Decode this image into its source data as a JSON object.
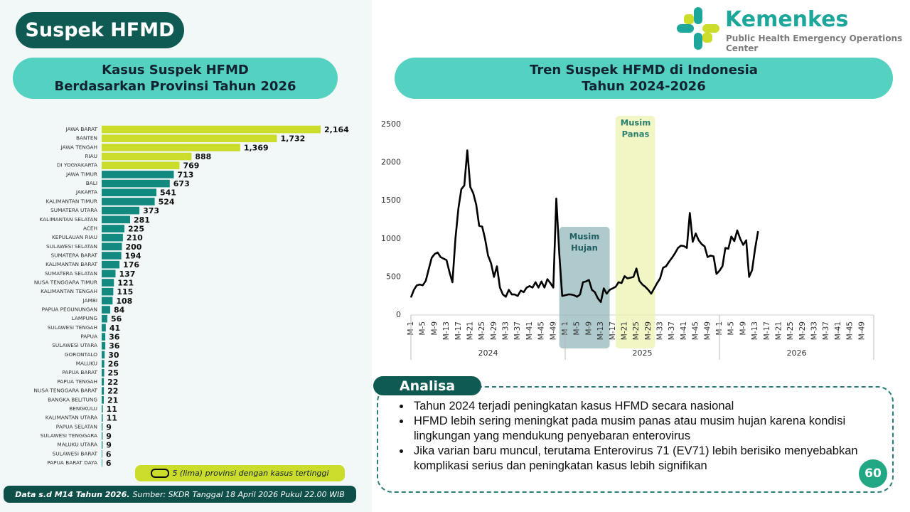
{
  "title": "Suspek HFMD",
  "logo": {
    "name": "Kemenkes",
    "subtitle": "Public Health Emergency Operations Center"
  },
  "chart_data": [
    {
      "type": "bar",
      "orientation": "horizontal",
      "title": [
        "Kasus Suspek HFMD",
        "Berdasarkan Provinsi Tahun 2026"
      ],
      "categories": [
        "JAWA BARAT",
        "BANTEN",
        "JAWA TENGAH",
        "RIAU",
        "DI YOGYAKARTA",
        "JAWA TIMUR",
        "BALI",
        "JAKARTA",
        "KALIMANTAN TIMUR",
        "SUMATERA UTARA",
        "KALIMANTAN SELATAN",
        "ACEH",
        "KEPULAUAN RIAU",
        "SULAWESI SELATAN",
        "SUMATERA BARAT",
        "KALIMANTAN BARAT",
        "SUMATERA SELATAN",
        "NUSA TENGGARA TIMUR",
        "KALIMANTAN TENGAH",
        "JAMBI",
        "PAPUA PEGUNUNGAN",
        "LAMPUNG",
        "SULAWESI TENGAH",
        "PAPUA",
        "SULAWESI UTARA",
        "GORONTALO",
        "MALUKU",
        "PAPUA BARAT",
        "PAPUA TENGAH",
        "NUSA TENGGARA BARAT",
        "BANGKA BELITUNG",
        "BENGKULU",
        "KALIMANTAN UTARA",
        "PAPUA SELATAN",
        "SULAWESI TENGGARA",
        "MALUKU UTARA",
        "SULAWESI BARAT",
        "PAPUA BARAT DAYA"
      ],
      "values": [
        2164,
        1732,
        1369,
        888,
        769,
        713,
        673,
        541,
        524,
        373,
        281,
        225,
        210,
        200,
        194,
        176,
        137,
        121,
        115,
        108,
        84,
        56,
        41,
        36,
        36,
        30,
        26,
        25,
        22,
        22,
        21,
        11,
        11,
        9,
        9,
        9,
        6,
        6
      ],
      "value_labels": [
        "2,164",
        "1,732",
        "1,369",
        "888",
        "769",
        "713",
        "673",
        "541",
        "524",
        "373",
        "281",
        "225",
        "210",
        "200",
        "194",
        "176",
        "137",
        "121",
        "115",
        "108",
        "84",
        "56",
        "41",
        "36",
        "36",
        "30",
        "26",
        "25",
        "22",
        "22",
        "21",
        "11",
        "11",
        "9",
        "9",
        "9",
        "6",
        "6"
      ],
      "colors": [
        "#cbdc2a",
        "#cbdc2a",
        "#cbdc2a",
        "#cbdc2a",
        "#cbdc2a",
        "#138a80",
        "#138a80",
        "#138a80",
        "#138a80",
        "#138a80",
        "#138a80",
        "#138a80",
        "#138a80",
        "#138a80",
        "#138a80",
        "#138a80",
        "#138a80",
        "#138a80",
        "#138a80",
        "#138a80",
        "#138a80",
        "#138a80",
        "#138a80",
        "#138a80",
        "#138a80",
        "#138a80",
        "#138a80",
        "#138a80",
        "#138a80",
        "#138a80",
        "#138a80",
        "#138a80",
        "#138a80",
        "#138a80",
        "#138a80",
        "#138a80",
        "#138a80",
        "#138a80"
      ],
      "legend": {
        "label": "5 (lima) provinsi dengan kasus tertinggi",
        "color": "#cbdc2a"
      }
    },
    {
      "type": "line",
      "title": [
        "Tren Suspek HFMD di Indonesia",
        "Tahun 2024-2026"
      ],
      "groups": [
        "2024",
        "2025",
        "2026"
      ],
      "categories": [
        "M-1",
        null,
        null,
        null,
        "M-5",
        null,
        null,
        null,
        "M-9",
        null,
        null,
        null,
        "M-13",
        null,
        null,
        null,
        "M-17",
        null,
        null,
        null,
        "M-21",
        null,
        null,
        null,
        "M-25",
        null,
        null,
        null,
        "M-29",
        null,
        null,
        null,
        "M-33",
        null,
        null,
        null,
        "M-37",
        null,
        null,
        null,
        "M-41",
        null,
        null,
        null,
        "M-45",
        null,
        null,
        null,
        "M-49",
        null,
        null,
        null,
        "M-1",
        null,
        null,
        null,
        "M-5",
        null,
        null,
        null,
        "M-9",
        null,
        null,
        null,
        "M-13",
        null,
        null,
        null,
        "M-17",
        null,
        null,
        null,
        "M-21",
        null,
        null,
        null,
        "M-25",
        null,
        null,
        null,
        "M-29",
        null,
        null,
        null,
        "M-33",
        null,
        null,
        null,
        "M-37",
        null,
        null,
        null,
        "M-41",
        null,
        null,
        null,
        "M-45",
        null,
        null,
        null,
        "M-49",
        null,
        null,
        null,
        "M-1",
        null,
        null,
        null,
        "M-5",
        null,
        null,
        null,
        "M-9",
        null,
        null,
        null,
        "M-13",
        null,
        null,
        null,
        "M-17",
        null,
        null,
        null,
        "M-21",
        null,
        null,
        null,
        "M-25",
        null,
        null,
        null,
        "M-29",
        null,
        null,
        null,
        "M-33",
        null,
        null,
        null,
        "M-37",
        null,
        null,
        null,
        "M-41",
        null,
        null,
        null,
        "M-45",
        null,
        null,
        null,
        "M-49",
        null,
        null,
        null
      ],
      "values": [
        230,
        330,
        390,
        400,
        390,
        450,
        600,
        750,
        800,
        820,
        760,
        740,
        720,
        560,
        430,
        1000,
        1400,
        1650,
        1700,
        2160,
        1680,
        1600,
        1450,
        1170,
        1160,
        1000,
        780,
        680,
        500,
        640,
        360,
        270,
        240,
        330,
        270,
        270,
        250,
        320,
        300,
        360,
        380,
        360,
        430,
        360,
        440,
        360,
        470,
        420,
        360,
        1530,
        800,
        250,
        260,
        270,
        270,
        260,
        240,
        270,
        430,
        440,
        460,
        330,
        300,
        220,
        170,
        350,
        280,
        330,
        350,
        370,
        430,
        420,
        510,
        480,
        490,
        500,
        610,
        450,
        400,
        370,
        330,
        280,
        350,
        420,
        480,
        620,
        640,
        700,
        750,
        810,
        880,
        910,
        905,
        880,
        1340,
        960,
        1070,
        980,
        930,
        900,
        760,
        780,
        770,
        540,
        580,
        640,
        880,
        870,
        1030,
        970,
        1110,
        1000,
        920,
        980,
        500,
        590,
        870,
        1100,
        null,
        null,
        null,
        null,
        null,
        null,
        null,
        null,
        null,
        null,
        null,
        null,
        null,
        null,
        null,
        null,
        null,
        null,
        null,
        null,
        null,
        null,
        null,
        null,
        null,
        null,
        null,
        null,
        null,
        null,
        null,
        null,
        null,
        null,
        null,
        null,
        null,
        null
      ],
      "color": "#000000",
      "ylim": [
        0,
        2500
      ],
      "yticks": [
        0,
        500,
        1000,
        1500,
        2000,
        2500
      ],
      "annotations": [
        {
          "text": [
            "Musim",
            "Hujan"
          ],
          "color": "#8db3b6"
        },
        {
          "text": [
            "Musim",
            "Panas"
          ],
          "color": "#eef2b0"
        }
      ]
    }
  ],
  "analysis": {
    "title": "Analisa",
    "bullets": [
      "Tahun 2024 terjadi peningkatan kasus HFMD secara nasional",
      "HFMD lebih sering meningkat pada musim panas atau musim hujan karena kondisi lingkungan yang mendukung penyebaran enterovirus",
      "Jika varian baru muncul, terutama Enterovirus 71 (EV71) lebih berisiko menyebabkan komplikasi serius dan peningkatan kasus lebih signifikan"
    ]
  },
  "footnote": {
    "bold": "Data s.d M14 Tahun 2026.",
    "text": "Sumber: SKDR Tanggal 18 April 2026 Pukul 22.00 WIB"
  },
  "page_number": 60
}
